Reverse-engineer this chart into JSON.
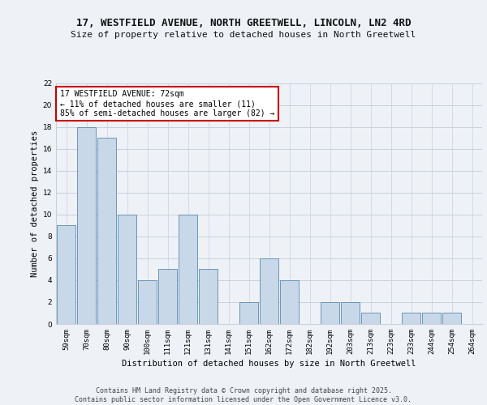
{
  "title_line1": "17, WESTFIELD AVENUE, NORTH GREETWELL, LINCOLN, LN2 4RD",
  "title_line2": "Size of property relative to detached houses in North Greetwell",
  "xlabel": "Distribution of detached houses by size in North Greetwell",
  "ylabel": "Number of detached properties",
  "bin_labels": [
    "59sqm",
    "70sqm",
    "80sqm",
    "90sqm",
    "100sqm",
    "111sqm",
    "121sqm",
    "131sqm",
    "141sqm",
    "151sqm",
    "162sqm",
    "172sqm",
    "182sqm",
    "192sqm",
    "203sqm",
    "213sqm",
    "223sqm",
    "233sqm",
    "244sqm",
    "254sqm",
    "264sqm"
  ],
  "bar_heights": [
    9,
    18,
    17,
    10,
    4,
    5,
    10,
    5,
    0,
    2,
    6,
    4,
    0,
    2,
    2,
    1,
    0,
    1,
    1,
    1,
    0
  ],
  "bar_color": "#c8d8e8",
  "bar_edge_color": "#5a8ab0",
  "background_color": "#eef2f7",
  "annotation_text": "17 WESTFIELD AVENUE: 72sqm\n← 11% of detached houses are smaller (11)\n85% of semi-detached houses are larger (82) →",
  "annotation_box_color": "#ffffff",
  "annotation_box_edge_color": "#cc0000",
  "property_bin_index": 1,
  "ylim": [
    0,
    22
  ],
  "yticks": [
    0,
    2,
    4,
    6,
    8,
    10,
    12,
    14,
    16,
    18,
    20,
    22
  ],
  "footer_line1": "Contains HM Land Registry data © Crown copyright and database right 2025.",
  "footer_line2": "Contains public sector information licensed under the Open Government Licence v3.0.",
  "grid_color": "#c8d0dc",
  "title_fontsize": 9,
  "subtitle_fontsize": 8,
  "axis_label_fontsize": 7.5,
  "ylabel_fontsize": 7.5,
  "tick_fontsize": 6.5,
  "annotation_fontsize": 7,
  "footer_fontsize": 6
}
